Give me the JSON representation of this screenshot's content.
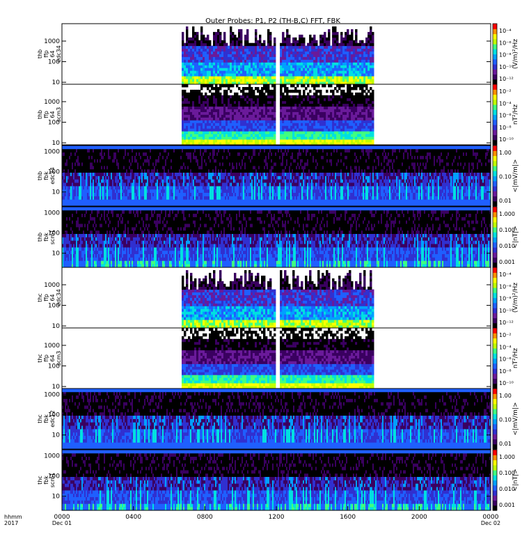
{
  "title": "Outer Probes: P1, P2 (TH-B,C) FFT, FBK",
  "time_axis": {
    "corner_label": [
      "hhmm",
      "2017"
    ],
    "ticks": [
      {
        "hour": 0,
        "label": "0000",
        "sub": "Dec 01"
      },
      {
        "hour": 4,
        "label": "0400",
        "sub": ""
      },
      {
        "hour": 8,
        "label": "0800",
        "sub": ""
      },
      {
        "hour": 12,
        "label": "1200",
        "sub": ""
      },
      {
        "hour": 16,
        "label": "1600",
        "sub": ""
      },
      {
        "hour": 20,
        "label": "2000",
        "sub": ""
      },
      {
        "hour": 24,
        "label": "0000",
        "sub": "Dec 02"
      }
    ],
    "range_hours": [
      0,
      24
    ]
  },
  "colors": {
    "colormap": [
      "#000000",
      "#3a0060",
      "#6a1a9a",
      "#3030d0",
      "#1f5fff",
      "#00a0ff",
      "#00e0e0",
      "#40ff80",
      "#c0ff00",
      "#ffff00",
      "#ff9000",
      "#ff0000"
    ]
  },
  "chart_data": {
    "type": "heatmap",
    "panels": [
      {
        "id": "thb-ffp-e34",
        "ylabel": [
          "thb",
          "ffp",
          "64",
          "edc34"
        ],
        "yticks": [
          "10",
          "100",
          "1000"
        ],
        "ylog": true,
        "yrange": [
          8,
          7000
        ],
        "data_spans_hours": [
          [
            6.7,
            11.9
          ],
          [
            12.2,
            17.4
          ]
        ],
        "colorbar": {
          "labels": [
            "10⁻⁴",
            "10⁻⁶",
            "10⁻⁸",
            "10⁻¹⁰",
            "10⁻¹²"
          ],
          "unit": "(V/m)²/Hz"
        }
      },
      {
        "id": "thb-ffp-scm3",
        "ylabel": [
          "thb",
          "ffp",
          "64",
          "scm3"
        ],
        "yticks": [
          "10",
          "100",
          "1000"
        ],
        "ylog": true,
        "yrange": [
          8,
          7000
        ],
        "data_spans_hours": [
          [
            6.7,
            11.9
          ],
          [
            12.2,
            17.4
          ]
        ],
        "colorbar": {
          "labels": [
            "10⁻²",
            "10⁻⁴",
            "10⁻⁶",
            "10⁻⁸",
            "10⁻¹⁰"
          ],
          "unit": "nT²/Hz"
        }
      },
      {
        "id": "thb-fbk-e34",
        "ylabel": [
          "thb",
          "fbk",
          "edc34"
        ],
        "yticks": [
          "10",
          "100",
          "1000"
        ],
        "ylog": true,
        "yrange": [
          2,
          2000
        ],
        "data_spans_hours": [
          [
            0,
            24
          ]
        ],
        "colorbar": {
          "labels": [
            "1.00",
            "0.10",
            "0.01"
          ],
          "unit": "<|mV/m|>"
        }
      },
      {
        "id": "thb-fbk-scm1",
        "ylabel": [
          "thb",
          "fbk",
          "scm1"
        ],
        "yticks": [
          "10",
          "100",
          "1000"
        ],
        "ylog": true,
        "yrange": [
          2,
          2000
        ],
        "data_spans_hours": [
          [
            0,
            24
          ]
        ],
        "colorbar": {
          "labels": [
            "1.000",
            "0.100",
            "0.010",
            "0.001"
          ],
          "unit": "<|nT|>"
        }
      },
      {
        "id": "thc-ffp-e34",
        "ylabel": [
          "thc",
          "ffp",
          "64",
          "edc34"
        ],
        "yticks": [
          "10",
          "100",
          "1000"
        ],
        "ylog": true,
        "yrange": [
          8,
          7000
        ],
        "data_spans_hours": [
          [
            6.7,
            11.9
          ],
          [
            12.2,
            17.4
          ]
        ],
        "colorbar": {
          "labels": [
            "10⁻⁴",
            "10⁻⁶",
            "10⁻⁸",
            "10⁻¹⁰",
            "10⁻¹²"
          ],
          "unit": "(V/m)²/Hz"
        }
      },
      {
        "id": "thc-ffp-scm3",
        "ylabel": [
          "thc",
          "ffp",
          "64",
          "scm3"
        ],
        "yticks": [
          "10",
          "100",
          "1000"
        ],
        "ylog": true,
        "yrange": [
          8,
          7000
        ],
        "data_spans_hours": [
          [
            6.7,
            11.9
          ],
          [
            12.2,
            17.4
          ]
        ],
        "colorbar": {
          "labels": [
            "10⁻²",
            "10⁻⁴",
            "10⁻⁶",
            "10⁻⁸",
            "10⁻¹⁰"
          ],
          "unit": "nT²/Hz"
        }
      },
      {
        "id": "thc-fbk-e12",
        "ylabel": [
          "thc",
          "fbk",
          "edc12"
        ],
        "yticks": [
          "10",
          "100",
          "1000"
        ],
        "ylog": true,
        "yrange": [
          2,
          2000
        ],
        "data_spans_hours": [
          [
            0,
            24
          ]
        ],
        "colorbar": {
          "labels": [
            "1.00",
            "0.10",
            "0.01"
          ],
          "unit": "<|mV/m|>"
        }
      },
      {
        "id": "thc-fbk-scm1",
        "ylabel": [
          "thc",
          "fbk",
          "scm1"
        ],
        "yticks": [
          "10",
          "100",
          "1000"
        ],
        "ylog": true,
        "yrange": [
          2,
          2000
        ],
        "data_spans_hours": [
          [
            0,
            24
          ]
        ],
        "colorbar": {
          "labels": [
            "1.000",
            "0.100",
            "0.010",
            "0.001"
          ],
          "unit": "<|nT|>"
        }
      }
    ]
  }
}
